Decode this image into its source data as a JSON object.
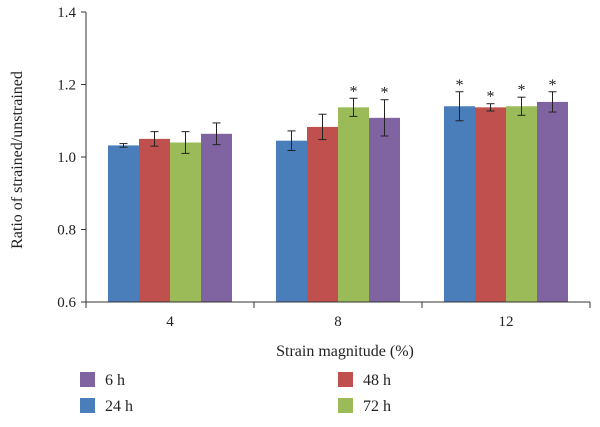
{
  "chart_data": {
    "type": "bar",
    "xlabel": "Strain magnitude (%)",
    "ylabel": "Ratio of strained/unstrained",
    "ylim": [
      0.6,
      1.4
    ],
    "yticks": [
      "0.6",
      "0.8",
      "1.0",
      "1.2",
      "1.4"
    ],
    "categories": [
      "4",
      "8",
      "12"
    ],
    "series": [
      {
        "name": "24 h",
        "color": "#4a7ebb",
        "values": [
          1.032,
          1.045,
          1.14
        ],
        "errors": [
          0.005,
          0.027,
          0.04
        ],
        "significant": [
          false,
          false,
          true
        ]
      },
      {
        "name": "48 h",
        "color": "#c0504d",
        "values": [
          1.05,
          1.083,
          1.137
        ],
        "errors": [
          0.02,
          0.035,
          0.01
        ],
        "significant": [
          false,
          false,
          true
        ]
      },
      {
        "name": "72 h",
        "color": "#9bbb59",
        "values": [
          1.04,
          1.137,
          1.14
        ],
        "errors": [
          0.03,
          0.025,
          0.025
        ],
        "significant": [
          false,
          true,
          true
        ]
      },
      {
        "name": "6 h",
        "color": "#8064a2",
        "values": [
          1.064,
          1.108,
          1.152
        ],
        "errors": [
          0.03,
          0.05,
          0.028
        ],
        "significant": [
          false,
          true,
          true
        ]
      }
    ],
    "significance_marker": "*",
    "legend": {
      "placement": "bottom",
      "order": [
        "6 h",
        "48 h",
        "24 h",
        "72 h"
      ]
    }
  }
}
